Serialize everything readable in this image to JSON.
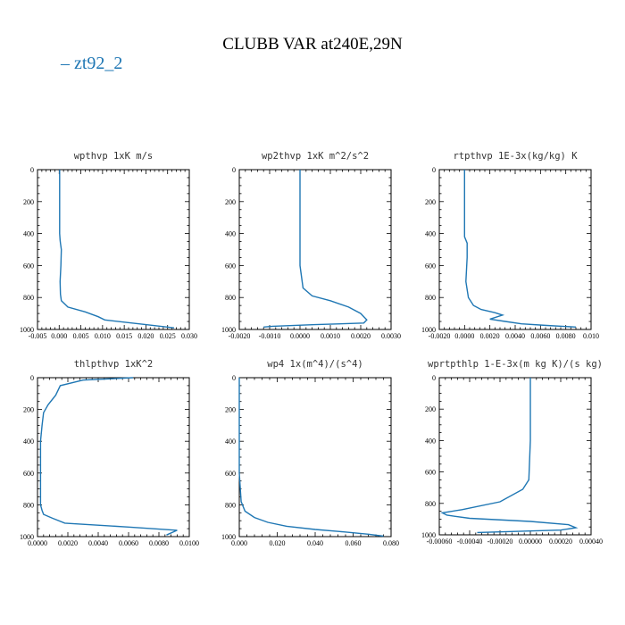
{
  "figure": {
    "title": "CLUBB VAR at240E,29N",
    "legend": "– zt92_2",
    "legend_color": "#1f77b4",
    "line_color": "#1f77b4"
  },
  "chart_data": [
    {
      "type": "line",
      "title": "wpthvp   1xK  m/s",
      "xlim": [
        -0.005,
        0.03
      ],
      "ylim": [
        1000,
        0
      ],
      "xticks": [
        -0.005,
        0.0,
        0.005,
        0.01,
        0.015,
        0.02,
        0.025,
        0.03
      ],
      "xtick_labels": [
        "-0.005",
        "0.000",
        "0.005",
        "0.010",
        "0.015",
        "0.020",
        "0.025",
        "0.030"
      ],
      "yticks": [
        0,
        200,
        400,
        600,
        800,
        1000
      ],
      "ytick_labels": [
        "0",
        "200",
        "400",
        "600",
        "800",
        "1000"
      ],
      "series": [
        {
          "name": "zt92_2",
          "x": [
            0.0001,
            0.0001,
            0.0001,
            0.0002,
            0.0003,
            0.0005,
            0.0004,
            0.0002,
            0.0003,
            0.0005,
            0.002,
            0.006,
            0.009,
            0.0105,
            0.02,
            0.0265
          ],
          "y": [
            0,
            200,
            400,
            440,
            460,
            500,
            600,
            700,
            780,
            820,
            860,
            890,
            920,
            940,
            970,
            990
          ]
        }
      ]
    },
    {
      "type": "line",
      "title": "wp2thvp   1xK  m^2/s^2",
      "xlim": [
        -0.002,
        0.003
      ],
      "ylim": [
        1000,
        0
      ],
      "xticks": [
        -0.002,
        -0.001,
        0.0,
        0.001,
        0.002,
        0.003
      ],
      "xtick_labels": [
        "-0.0020",
        "-0.0010",
        "0.0000",
        "0.0010",
        "0.0020",
        "0.0030"
      ],
      "yticks": [
        0,
        200,
        400,
        600,
        800,
        1000
      ],
      "ytick_labels": [
        "0",
        "200",
        "400",
        "600",
        "800",
        "1000"
      ],
      "series": [
        {
          "name": "zt92_2",
          "x": [
            0.0,
            0.0,
            0.0,
            0.0,
            0.0001,
            0.0004,
            0.001,
            0.0016,
            0.002,
            0.0022,
            0.0021,
            0.0005,
            -0.0009,
            -0.0012
          ],
          "y": [
            0,
            200,
            400,
            600,
            740,
            790,
            820,
            860,
            900,
            940,
            960,
            970,
            980,
            985
          ]
        }
      ]
    },
    {
      "type": "line",
      "title": "rtpthvp   1E-3x(kg/kg)  K",
      "xlim": [
        -0.002,
        0.01
      ],
      "ylim": [
        1000,
        0
      ],
      "xticks": [
        -0.002,
        0.0,
        0.002,
        0.004,
        0.006,
        0.008,
        0.01
      ],
      "xtick_labels": [
        "-0.0020",
        "0.0000",
        "0.0020",
        "0.0040",
        "0.0060",
        "0.0080",
        "0.010"
      ],
      "yticks": [
        0,
        200,
        400,
        600,
        800,
        1000
      ],
      "ytick_labels": [
        "0",
        "200",
        "400",
        "600",
        "800",
        "1000"
      ],
      "series": [
        {
          "name": "zt92_2",
          "x": [
            0.0,
            0.0,
            0.0,
            0.0002,
            0.0002,
            0.0001,
            0.0003,
            0.0007,
            0.0013,
            0.0024,
            0.003,
            0.002,
            0.0032,
            0.0045,
            0.0065,
            0.0088
          ],
          "y": [
            0,
            200,
            420,
            460,
            550,
            700,
            800,
            850,
            875,
            895,
            910,
            935,
            950,
            965,
            975,
            985
          ]
        }
      ]
    },
    {
      "type": "line",
      "title": "thlpthvp   1xK^2",
      "xlim": [
        0.0,
        0.01
      ],
      "ylim": [
        1000,
        0
      ],
      "xticks": [
        0.0,
        0.002,
        0.004,
        0.006,
        0.008,
        0.01
      ],
      "xtick_labels": [
        "0.0000",
        "0.0020",
        "0.0040",
        "0.0060",
        "0.0080",
        "0.0100"
      ],
      "yticks": [
        0,
        200,
        400,
        600,
        800,
        1000
      ],
      "ytick_labels": [
        "0",
        "200",
        "400",
        "600",
        "800",
        "1000"
      ],
      "series": [
        {
          "name": "zt92_2",
          "x": [
            0.0063,
            0.003,
            0.0015,
            0.0012,
            0.0007,
            0.0004,
            0.0003,
            0.0002,
            0.0002,
            0.0002,
            0.0003,
            0.0004,
            0.001,
            0.0018,
            0.006,
            0.0092,
            0.0085
          ],
          "y": [
            0,
            15,
            50,
            110,
            170,
            220,
            300,
            400,
            600,
            800,
            835,
            860,
            885,
            915,
            940,
            960,
            990
          ]
        }
      ]
    },
    {
      "type": "line",
      "title": "wp4   1x(m^4)/(s^4)",
      "xlim": [
        0.0,
        0.08
      ],
      "ylim": [
        1000,
        0
      ],
      "xticks": [
        0.0,
        0.02,
        0.04,
        0.06,
        0.08
      ],
      "xtick_labels": [
        "0.000",
        "0.020",
        "0.040",
        "0.060",
        "0.080"
      ],
      "yticks": [
        0,
        200,
        400,
        600,
        800,
        1000
      ],
      "ytick_labels": [
        "0",
        "200",
        "400",
        "600",
        "800",
        "1000"
      ],
      "series": [
        {
          "name": "zt92_2",
          "x": [
            0.0,
            0.0,
            0.0,
            0.0,
            0.001,
            0.003,
            0.008,
            0.015,
            0.025,
            0.04,
            0.055,
            0.068,
            0.076
          ],
          "y": [
            0,
            200,
            400,
            600,
            780,
            840,
            880,
            910,
            935,
            955,
            970,
            985,
            997
          ]
        }
      ]
    },
    {
      "type": "line",
      "title": "wprtpthlp   1-E-3x(m kg K)/(s kg)",
      "xlim": [
        -0.0006,
        0.0004
      ],
      "ylim": [
        1000,
        0
      ],
      "xticks": [
        -0.0006,
        -0.0004,
        -0.0002,
        0.0,
        0.0002,
        0.0004
      ],
      "xtick_labels": [
        "-0.00060",
        "-0.00040",
        "-0.00020",
        "0.00000",
        "0.00020",
        "0.00040"
      ],
      "yticks": [
        0,
        200,
        400,
        600,
        800,
        1000
      ],
      "ytick_labels": [
        "0",
        "200",
        "400",
        "600",
        "800",
        "1000"
      ],
      "series": [
        {
          "name": "zt92_2",
          "x": [
            0.0,
            0.0,
            0.0,
            -1e-05,
            -5e-05,
            -0.0002,
            -0.00045,
            -0.00058,
            -0.00055,
            -0.0004,
            0.0,
            0.00025,
            0.0003,
            0.0002,
            -0.00035
          ],
          "y": [
            0,
            200,
            400,
            650,
            710,
            790,
            840,
            860,
            875,
            895,
            915,
            935,
            955,
            970,
            985
          ]
        }
      ]
    }
  ]
}
